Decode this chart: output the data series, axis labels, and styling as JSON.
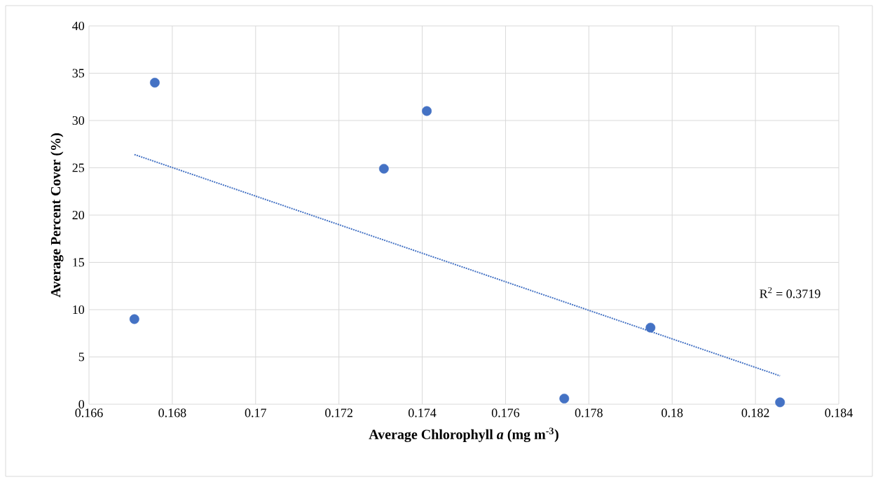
{
  "chart_data": {
    "type": "scatter",
    "xlabel": "Average Chlorophyll *a* (mg m$^{-3}$)",
    "ylabel": "Average Percent Cover (%)",
    "xlim": [
      0.166,
      0.184
    ],
    "ylim": [
      0,
      40
    ],
    "xticks": [
      0.166,
      0.168,
      0.17,
      0.172,
      0.174,
      0.176,
      0.178,
      0.18,
      0.182,
      0.184
    ],
    "yticks": [
      0,
      5,
      10,
      15,
      20,
      25,
      30,
      35,
      40
    ],
    "grid": true,
    "series": [
      {
        "color": "#4472c4",
        "marker": "circle",
        "x": [
          0.16709,
          0.16758,
          0.17308,
          0.17411,
          0.17741,
          0.17948,
          0.18259
        ],
        "values": [
          9.0,
          34.0,
          24.9,
          31.0,
          0.6,
          8.1,
          0.2
        ]
      },
      {
        "type": "line",
        "color": "#4472c4",
        "marker": "none",
        "line_style": "dotted",
        "x": [
          0.16709,
          0.18259
        ],
        "values": [
          26.4,
          3.0
        ]
      }
    ],
    "annotations": [
      "R$^{2}$ = 0.3719"
    ]
  }
}
